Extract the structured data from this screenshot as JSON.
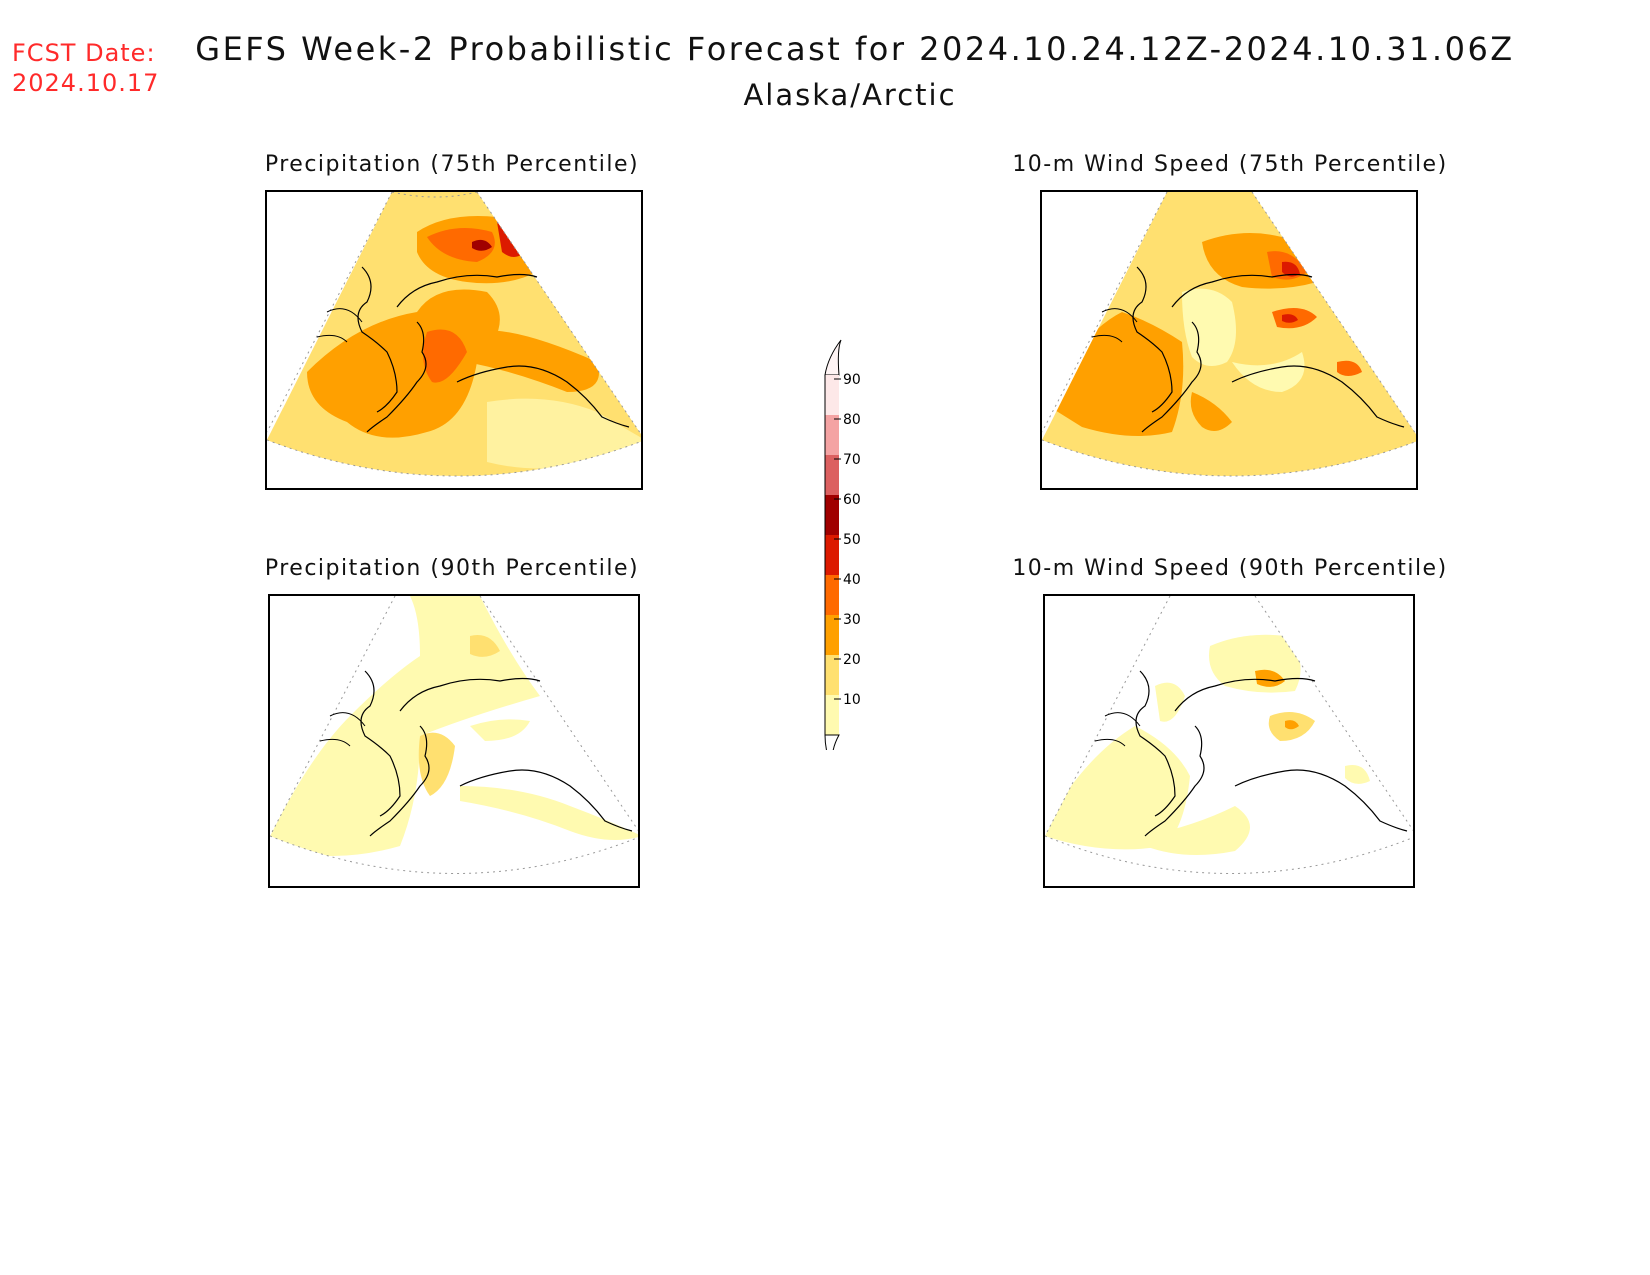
{
  "header": {
    "fcst_label": "FCST Date:",
    "fcst_date": "2024.10.17",
    "title": "GEFS Week-2 Probabilistic Forecast for 2024.10.24.12Z-2024.10.31.06Z",
    "subtitle": "Alaska/Arctic"
  },
  "panels": [
    {
      "id": "precip75",
      "title": "Precipitation (75th Percentile)"
    },
    {
      "id": "wind75",
      "title": "10-m Wind Speed (75th Percentile)"
    },
    {
      "id": "precip90",
      "title": "Precipitation (90th Percentile)"
    },
    {
      "id": "wind90",
      "title": "10-m Wind Speed (90th Percentile)"
    }
  ],
  "colorbar": {
    "levels": [
      "90",
      "80",
      "70",
      "60",
      "50",
      "40",
      "30",
      "20",
      "10"
    ],
    "colors": [
      "#fde8e8",
      "#f4a3a3",
      "#dc6060",
      "#a00000",
      "#dc1a00",
      "#ff6a00",
      "#ffa000",
      "#ffe070",
      "#fffab0"
    ]
  }
}
